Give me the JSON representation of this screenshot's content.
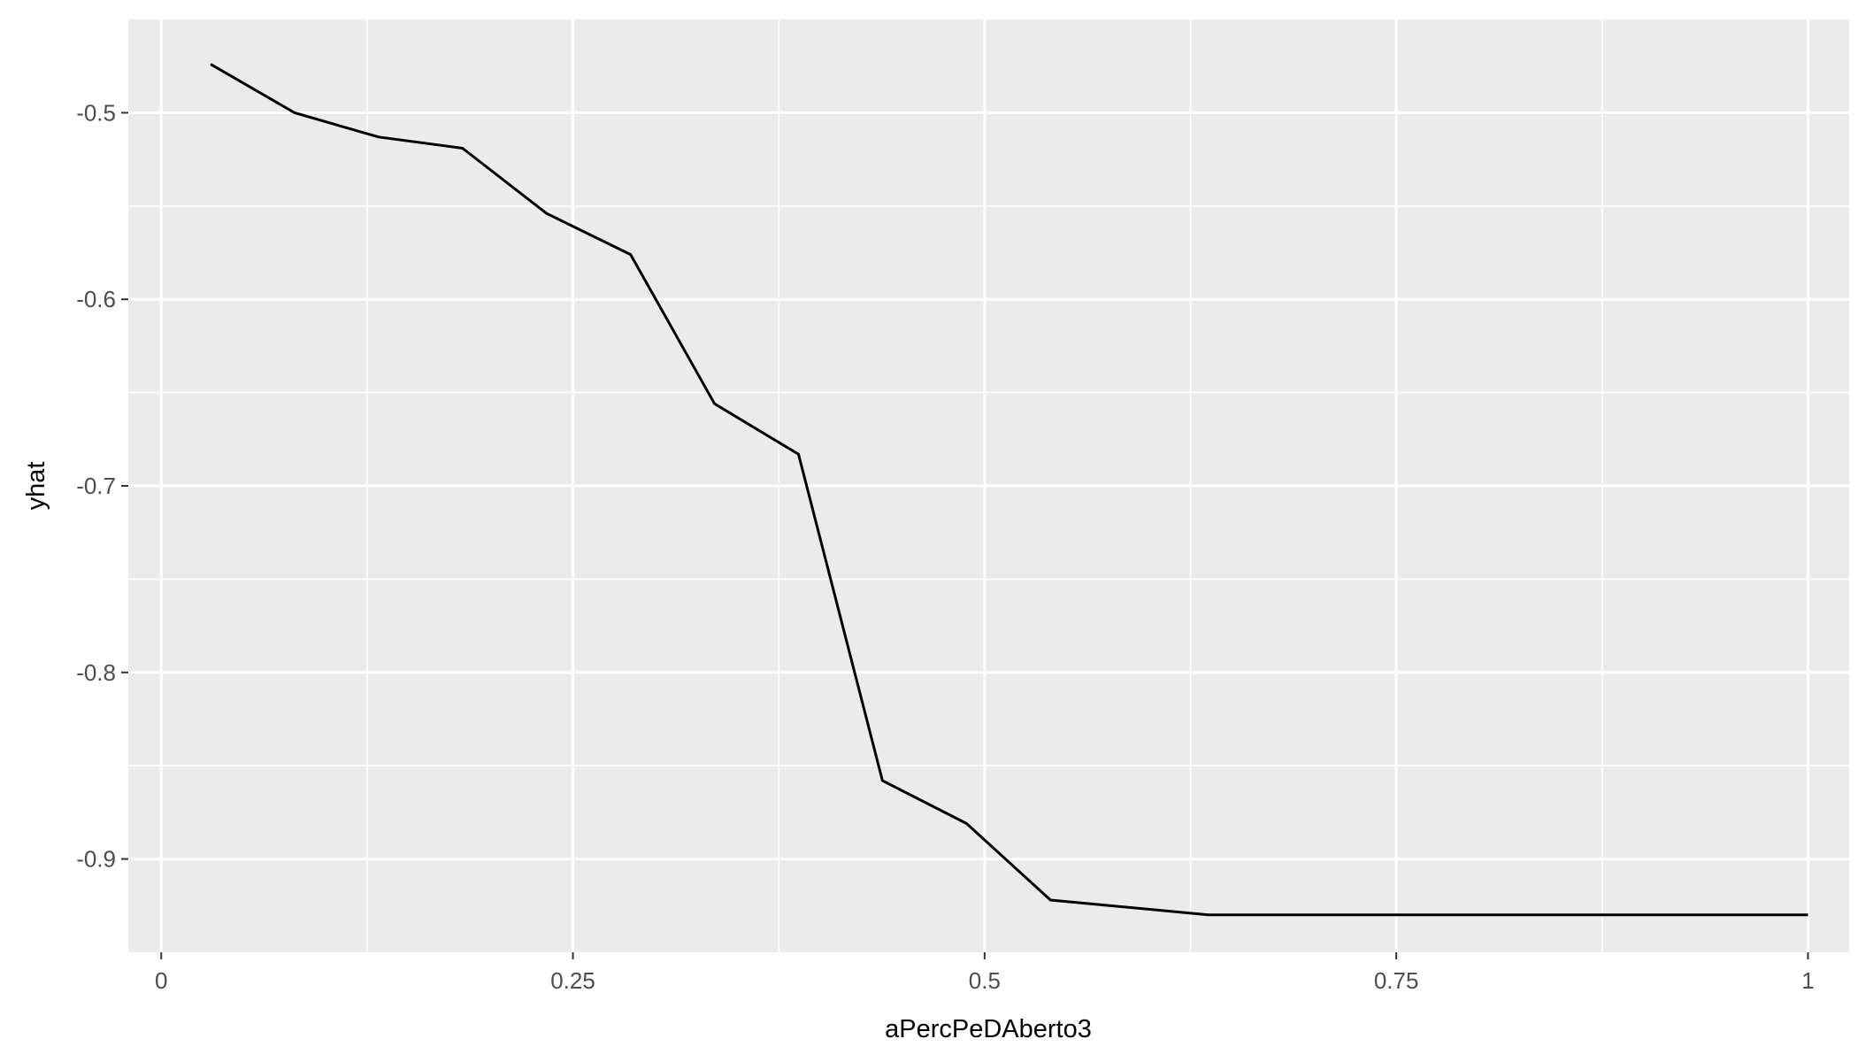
{
  "chart_data": {
    "type": "line",
    "title": "",
    "xlabel": "aPercPeDAberto3",
    "ylabel": "yhat",
    "xlim": [
      -0.02,
      1.025
    ],
    "ylim": [
      -0.95,
      -0.45
    ],
    "grid": true,
    "x_ticks": [
      {
        "value": 0,
        "label": "0"
      },
      {
        "value": 0.25,
        "label": "0.25"
      },
      {
        "value": 0.5,
        "label": "0.5"
      },
      {
        "value": 0.75,
        "label": "0.75"
      },
      {
        "value": 1,
        "label": "1"
      }
    ],
    "y_ticks": [
      {
        "value": -0.5,
        "label": "-0.5"
      },
      {
        "value": -0.6,
        "label": "-0.6"
      },
      {
        "value": -0.7,
        "label": "-0.7"
      },
      {
        "value": -0.8,
        "label": "-0.8"
      },
      {
        "value": -0.9,
        "label": "-0.9"
      }
    ],
    "series": [
      {
        "color": "#000000",
        "x": [
          0.03,
          0.081,
          0.132,
          0.183,
          0.234,
          0.285,
          0.336,
          0.387,
          0.438,
          0.489,
          0.54,
          0.636,
          1.0
        ],
        "y": [
          -0.474,
          -0.5,
          -0.513,
          -0.519,
          -0.554,
          -0.576,
          -0.656,
          -0.683,
          -0.858,
          -0.881,
          -0.922,
          -0.93,
          -0.93
        ]
      }
    ]
  }
}
